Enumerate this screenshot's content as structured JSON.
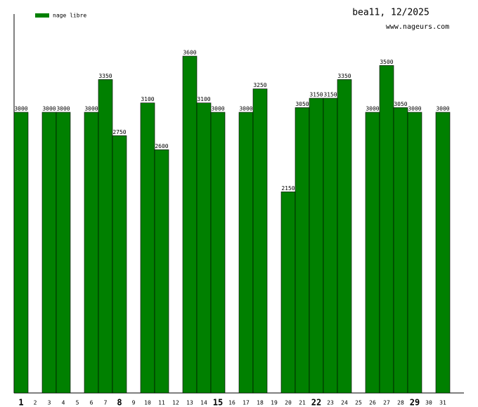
{
  "chart_data": {
    "type": "bar",
    "title": "bea11, 12/2025",
    "subtitle": "www.nageurs.com",
    "categories": [
      "1",
      "2",
      "3",
      "4",
      "5",
      "6",
      "7",
      "8",
      "9",
      "10",
      "11",
      "12",
      "13",
      "14",
      "15",
      "16",
      "17",
      "18",
      "19",
      "20",
      "21",
      "22",
      "23",
      "24",
      "25",
      "26",
      "27",
      "28",
      "29",
      "30",
      "31"
    ],
    "series": [
      {
        "name": "nage libre",
        "color": "#008000",
        "values": [
          3000,
          null,
          3000,
          3000,
          null,
          3000,
          3350,
          2750,
          null,
          3100,
          2600,
          null,
          3600,
          3100,
          3000,
          null,
          3000,
          3250,
          null,
          2150,
          3050,
          3150,
          3150,
          3350,
          null,
          3000,
          3500,
          3050,
          3000,
          null,
          3000
        ]
      }
    ],
    "ylim": [
      0,
      4200
    ]
  }
}
